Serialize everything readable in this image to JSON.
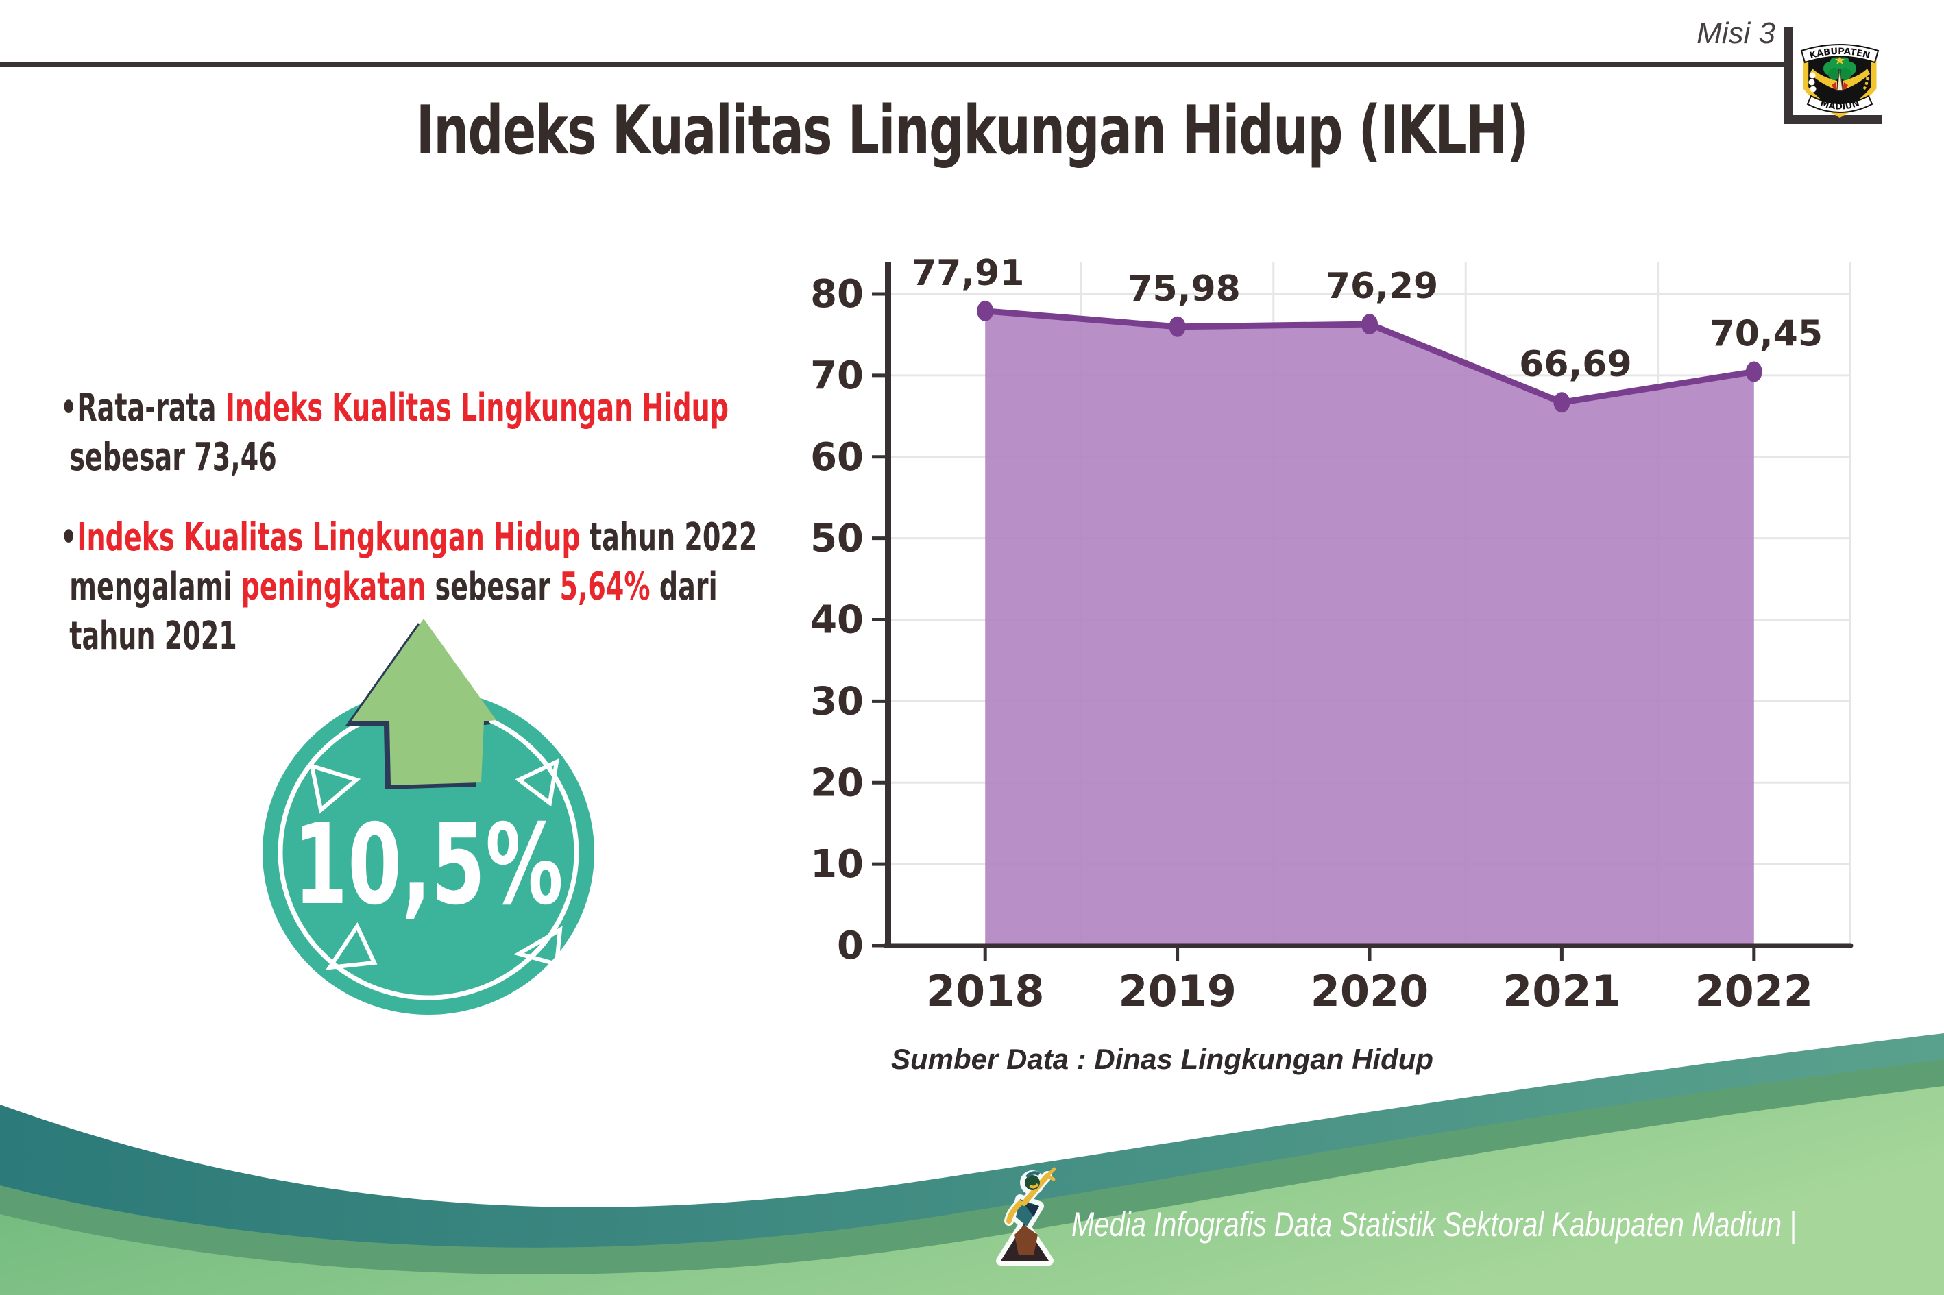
{
  "header": {
    "misi": "Misi 3",
    "title": "Indeks Kualitas Lingkungan Hidup (IKLH)",
    "logo": {
      "top": "KABUPATEN",
      "bottom": "MADIUN"
    }
  },
  "bullets": {
    "items": [
      [
        {
          "t": "•Rata-rata ",
          "c": "dark"
        },
        {
          "t": "Indeks Kualitas Lingkungan Hidup",
          "c": "red"
        },
        {
          "t": "\n sebesar 73,46",
          "c": "dark"
        }
      ],
      [
        {
          "t": "•",
          "c": "dark"
        },
        {
          "t": "Indeks Kualitas Lingkungan Hidup",
          "c": "red"
        },
        {
          "t": " tahun 2022\n mengalami ",
          "c": "dark"
        },
        {
          "t": "peningkatan",
          "c": "red"
        },
        {
          "t": " sebesar ",
          "c": "dark"
        },
        {
          "t": "5,64%",
          "c": "red"
        },
        {
          "t": " dari\n tahun 2021",
          "c": "dark"
        }
      ]
    ]
  },
  "badge": {
    "value": "10,5%"
  },
  "chart_data": {
    "type": "area",
    "categories": [
      "2018",
      "2019",
      "2020",
      "2021",
      "2022"
    ],
    "values": [
      77.91,
      75.98,
      76.29,
      66.69,
      70.45
    ],
    "value_labels": [
      "77,91",
      "75,98",
      "76,29",
      "66,69",
      "70,45"
    ],
    "title": "",
    "xlabel": "",
    "ylabel": "",
    "ylim": [
      0,
      80
    ],
    "ytick_step": 10,
    "grid": true,
    "legend": "none"
  },
  "source": "Sumber Data : Dinas Lingkungan Hidup",
  "footer": {
    "credit": "Media Infografis Data Statistik Sektoral Kabupaten Madiun |"
  },
  "colors": {
    "accent_red": "#e8262b",
    "text_dark": "#382d2b",
    "line_purple": "#7a3e8f",
    "fill_purple": "#b286c2",
    "axis_dark": "#383032",
    "gridline": "#e6e6e6",
    "badge_teal": "#3bb49b",
    "arrow_green": "#97c87f",
    "arrow_outline_navy": "#2c3a5a",
    "wave_teal_1": "#2c7a79",
    "wave_teal_2": "#5aa18d",
    "wave_green_1": "#68b57a",
    "wave_green_2": "#a6d69a",
    "wave_green_edge": "#5d9f72",
    "logo_yellow": "#f2c42d"
  }
}
